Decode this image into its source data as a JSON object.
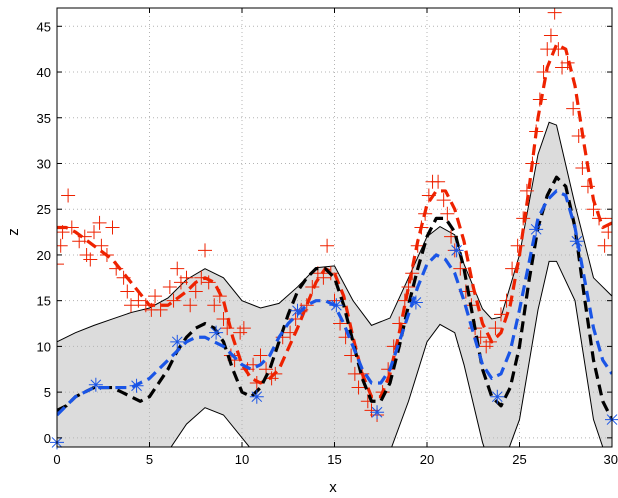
{
  "chart_data": {
    "type": "line",
    "xlabel": "x",
    "ylabel": "z",
    "xlim": [
      0,
      30
    ],
    "ylim": [
      -1,
      47
    ],
    "x_ticks": [
      0,
      5,
      10,
      15,
      20,
      25,
      30
    ],
    "y_ticks": [
      0,
      5,
      10,
      15,
      20,
      25,
      30,
      35,
      40,
      45
    ],
    "grid": true,
    "legend": "none",
    "colors": {
      "band_fill": "#dcdcdc",
      "band_edge": "#000000",
      "red": "#ee2200",
      "black": "#000000",
      "blue": "#1a55e6",
      "grid": "#b4b4b4"
    },
    "band": {
      "x": [
        0,
        1,
        2,
        3,
        4,
        5,
        6,
        7,
        8,
        9,
        10,
        11,
        12,
        13,
        14,
        15,
        16,
        17,
        18,
        19,
        20,
        20.7,
        21.5,
        22,
        23,
        23.5,
        24,
        25,
        26,
        26.6,
        27,
        28,
        29,
        30
      ],
      "upper": [
        10.5,
        11.5,
        12.3,
        13,
        13.7,
        14.2,
        15.3,
        17.3,
        18.5,
        17.5,
        15,
        14.2,
        14.7,
        16.5,
        18.6,
        18.8,
        15,
        12.3,
        13.1,
        17.5,
        22,
        23.1,
        22.2,
        19,
        14.1,
        13,
        13.2,
        20,
        31,
        34.5,
        34.2,
        25.5,
        17.5,
        15.5
      ],
      "lower": [
        -5,
        -6,
        -5,
        -5,
        -4,
        -3,
        -1.5,
        1.5,
        3.3,
        2.5,
        0,
        -2.5,
        -5.5,
        -6.5,
        -4.5,
        -2,
        -1.5,
        -2.5,
        -1.5,
        4,
        10.5,
        12.4,
        11.5,
        8,
        -0.5,
        -3.5,
        -3.5,
        2,
        14,
        19.3,
        19.3,
        15,
        2,
        -4
      ]
    },
    "series": [
      {
        "color": "red",
        "x": [
          0,
          0.5,
          1,
          2,
          3,
          4,
          5,
          6,
          7,
          7.5,
          8,
          8.5,
          9,
          9.5,
          10,
          10.5,
          11,
          11.5,
          12,
          13,
          14,
          14.5,
          15,
          15.5,
          16,
          16.5,
          17,
          17.5,
          18,
          18.5,
          19,
          19.5,
          20,
          20.5,
          21,
          21.5,
          22,
          22.5,
          23,
          23.5,
          24,
          24.5,
          25,
          25.5,
          26,
          26.5,
          27,
          27.5,
          28,
          28.5,
          29,
          29.5,
          30
        ],
        "y": [
          23,
          23,
          22.5,
          21,
          19.5,
          17,
          14.5,
          14.5,
          16,
          17,
          17.5,
          17,
          15,
          11,
          8,
          6.5,
          6,
          6.5,
          7.5,
          12,
          17,
          18.5,
          18,
          15.5,
          11,
          7,
          4.5,
          4.5,
          7,
          11.5,
          16.5,
          21.5,
          25.5,
          27,
          27,
          25,
          21.5,
          16.5,
          12.5,
          10.5,
          11.5,
          14.5,
          20,
          27,
          35,
          40.5,
          43,
          42.5,
          38.5,
          32,
          26,
          23,
          23.5
        ]
      },
      {
        "color": "black",
        "x": [
          0,
          0.5,
          1,
          1.5,
          2,
          2.5,
          3,
          3.5,
          4,
          4.5,
          5,
          5.5,
          6,
          6.5,
          7,
          7.5,
          8,
          8.5,
          9,
          9.5,
          10,
          10.5,
          11,
          11.5,
          12,
          12.5,
          13,
          13.5,
          14,
          14.5,
          15,
          15.5,
          16,
          16.5,
          17,
          17.5,
          18,
          18.5,
          19,
          19.5,
          20,
          20.5,
          21,
          21.5,
          22,
          22.5,
          23,
          23.5,
          24,
          24.5,
          25,
          25.5,
          26,
          26.5,
          27,
          27.5,
          28,
          28.5,
          29,
          29.5,
          30
        ],
        "y": [
          3,
          3.5,
          4.5,
          5,
          5.5,
          5.5,
          5.5,
          5,
          4.5,
          4,
          4.5,
          6,
          7.5,
          9.5,
          11,
          12,
          12.5,
          12,
          10.5,
          7.5,
          5,
          4.5,
          5.5,
          7.5,
          10.5,
          13.5,
          16,
          17.5,
          18.5,
          18.5,
          17.5,
          14.5,
          10.5,
          6.5,
          4,
          4,
          6,
          10,
          14.5,
          18.5,
          22,
          24,
          24,
          22.5,
          18.5,
          13,
          7.5,
          4.5,
          3.5,
          5.5,
          10,
          17,
          23,
          26.5,
          28.5,
          27.5,
          23,
          15.5,
          8.5,
          4,
          2
        ]
      },
      {
        "color": "blue",
        "x": [
          0,
          0.5,
          1,
          1.5,
          2,
          2.5,
          3,
          3.5,
          4,
          4.5,
          5,
          5.5,
          6,
          6.5,
          7,
          7.5,
          8,
          8.5,
          9,
          9.5,
          10,
          10.5,
          11,
          11.5,
          12,
          12.5,
          13,
          13.5,
          14,
          14.5,
          15,
          15.5,
          16,
          16.5,
          17,
          17.5,
          18,
          18.5,
          19,
          19.5,
          20,
          20.5,
          21,
          21.5,
          22,
          22.5,
          23,
          23.5,
          24,
          24.5,
          25,
          25.5,
          26,
          26.5,
          27,
          27.5,
          28,
          28.5,
          29,
          29.5,
          30
        ],
        "y": [
          2.5,
          3.5,
          4.5,
          5,
          5.5,
          5.5,
          5.5,
          5.5,
          5.5,
          6,
          6.5,
          7.5,
          8.5,
          9.5,
          10.5,
          11,
          11,
          10.5,
          10,
          9,
          8,
          7.5,
          8,
          9,
          11,
          12.5,
          13.5,
          14.5,
          15,
          15,
          14.5,
          12.5,
          10,
          7.5,
          6,
          6,
          7.5,
          10.5,
          13.5,
          16.5,
          19,
          20,
          19.5,
          18,
          15,
          11.5,
          8,
          6.5,
          7,
          9.5,
          14,
          19,
          24,
          26,
          27,
          26.5,
          23,
          17.5,
          12,
          8.5,
          7
        ]
      }
    ],
    "observations_red": [
      [
        0,
        19
      ],
      [
        0.2,
        21
      ],
      [
        0.3,
        22.5
      ],
      [
        0.6,
        26.5
      ],
      [
        0.8,
        23
      ],
      [
        1.2,
        21.5
      ],
      [
        1.5,
        22
      ],
      [
        1.6,
        20
      ],
      [
        1.8,
        19.5
      ],
      [
        2.0,
        22.5
      ],
      [
        2.3,
        23.5
      ],
      [
        2.4,
        21
      ],
      [
        2.7,
        20
      ],
      [
        3.0,
        23
      ],
      [
        3.2,
        18.5
      ],
      [
        3.6,
        17.5
      ],
      [
        3.8,
        16
      ],
      [
        4.0,
        14.5
      ],
      [
        4.4,
        15
      ],
      [
        4.8,
        14.5
      ],
      [
        5.1,
        14
      ],
      [
        5.3,
        15.5
      ],
      [
        5.6,
        14
      ],
      [
        6.1,
        16.5
      ],
      [
        6.3,
        15
      ],
      [
        6.5,
        18.5
      ],
      [
        6.7,
        17
      ],
      [
        7.0,
        17.5
      ],
      [
        7.2,
        14.5
      ],
      [
        7.5,
        16
      ],
      [
        7.8,
        17.5
      ],
      [
        8.0,
        20.5
      ],
      [
        8.2,
        17
      ],
      [
        8.5,
        14.5
      ],
      [
        8.8,
        15.5
      ],
      [
        9.0,
        13
      ],
      [
        9.2,
        12
      ],
      [
        9.4,
        9
      ],
      [
        9.6,
        8.5
      ],
      [
        9.9,
        11.5
      ],
      [
        10.1,
        12
      ],
      [
        10.3,
        7.5
      ],
      [
        10.6,
        8
      ],
      [
        10.8,
        6
      ],
      [
        11.0,
        9
      ],
      [
        11.3,
        7.5
      ],
      [
        11.6,
        6.5
      ],
      [
        11.8,
        7
      ],
      [
        12.2,
        11
      ],
      [
        12.6,
        11.5
      ],
      [
        12.9,
        13
      ],
      [
        13.2,
        14
      ],
      [
        13.5,
        14.5
      ],
      [
        13.8,
        16.5
      ],
      [
        14.1,
        18
      ],
      [
        14.4,
        17.5
      ],
      [
        14.6,
        21
      ],
      [
        14.8,
        18
      ],
      [
        15.0,
        15
      ],
      [
        15.3,
        12.5
      ],
      [
        15.6,
        11
      ],
      [
        15.9,
        9
      ],
      [
        16.1,
        7
      ],
      [
        16.3,
        5.5
      ],
      [
        16.5,
        7
      ],
      [
        16.8,
        4
      ],
      [
        17.0,
        3
      ],
      [
        17.3,
        2.5
      ],
      [
        17.6,
        5
      ],
      [
        17.9,
        7.5
      ],
      [
        18.2,
        10
      ],
      [
        18.5,
        12.5
      ],
      [
        18.8,
        15
      ],
      [
        19.0,
        16.5
      ],
      [
        19.2,
        18
      ],
      [
        19.5,
        21
      ],
      [
        19.7,
        23
      ],
      [
        19.9,
        24.5
      ],
      [
        20.1,
        26.5
      ],
      [
        20.3,
        28
      ],
      [
        20.6,
        28
      ],
      [
        20.9,
        26
      ],
      [
        21.1,
        24.5
      ],
      [
        21.3,
        22
      ],
      [
        21.5,
        20.5
      ],
      [
        21.8,
        18.5
      ],
      [
        22.1,
        16
      ],
      [
        22.4,
        14.5
      ],
      [
        22.6,
        12
      ],
      [
        22.9,
        11
      ],
      [
        23.2,
        10
      ],
      [
        23.4,
        10.5
      ],
      [
        23.7,
        12
      ],
      [
        24.0,
        13.5
      ],
      [
        24.3,
        15
      ],
      [
        24.6,
        18.5
      ],
      [
        24.9,
        21
      ],
      [
        25.2,
        24
      ],
      [
        25.4,
        27
      ],
      [
        25.7,
        30
      ],
      [
        25.9,
        33.5
      ],
      [
        26.1,
        37
      ],
      [
        26.3,
        40
      ],
      [
        26.5,
        42.5
      ],
      [
        26.7,
        44
      ],
      [
        26.9,
        46.5
      ],
      [
        27.1,
        42.5
      ],
      [
        27.3,
        40.5
      ],
      [
        27.6,
        41
      ],
      [
        27.9,
        36
      ],
      [
        28.2,
        33
      ],
      [
        28.4,
        29.5
      ],
      [
        28.7,
        27.5
      ],
      [
        29.0,
        25
      ],
      [
        29.3,
        24
      ],
      [
        29.6,
        21
      ],
      [
        29.8,
        22.5
      ],
      [
        30.0,
        24
      ]
    ],
    "observations_blue": [
      [
        0,
        -0.5
      ],
      [
        2.1,
        5.8
      ],
      [
        4.3,
        5.7
      ],
      [
        6.5,
        10.5
      ],
      [
        8.6,
        11.5
      ],
      [
        10.8,
        4.5
      ],
      [
        13.0,
        13.9
      ],
      [
        15.1,
        14.5
      ],
      [
        17.3,
        2.8
      ],
      [
        19.4,
        14.8
      ],
      [
        21.6,
        20.5
      ],
      [
        23.8,
        4.5
      ],
      [
        25.9,
        22.8
      ],
      [
        28.1,
        21.5
      ],
      [
        30.0,
        2
      ]
    ]
  }
}
